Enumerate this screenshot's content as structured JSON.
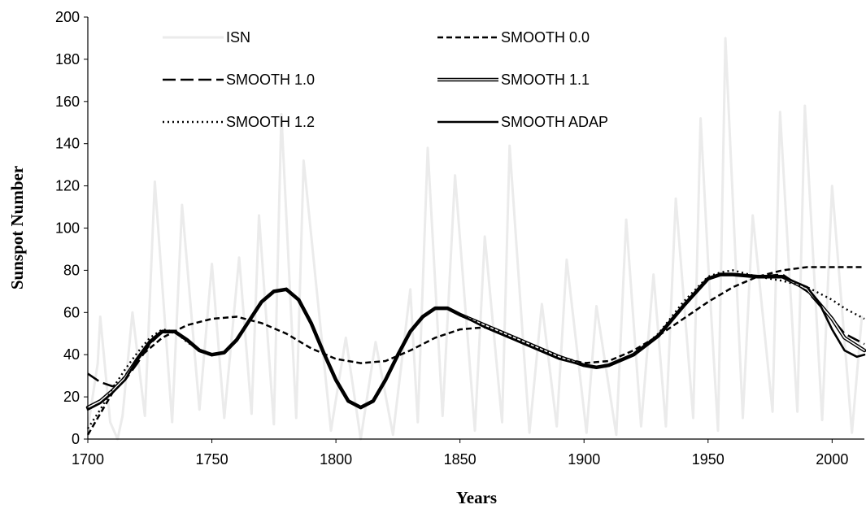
{
  "chart_data": {
    "type": "line",
    "xlabel": "Years",
    "ylabel": "Sunspot Number",
    "xlim": [
      1700,
      2013
    ],
    "ylim": [
      0,
      200
    ],
    "x_ticks": [
      1700,
      1750,
      1800,
      1850,
      1900,
      1950,
      2000
    ],
    "y_ticks": [
      0,
      20,
      40,
      60,
      80,
      100,
      120,
      140,
      160,
      180,
      200
    ],
    "grid": false,
    "legend_position": "top",
    "series": [
      {
        "name": "ISN",
        "color": "#ebebeb",
        "style": "solid-thin",
        "points": [
          [
            1700,
            5
          ],
          [
            1704,
            36
          ],
          [
            1705,
            58
          ],
          [
            1709,
            8
          ],
          [
            1712,
            0
          ],
          [
            1714,
            11
          ],
          [
            1718,
            60
          ],
          [
            1723,
            11
          ],
          [
            1727,
            122
          ],
          [
            1734,
            8
          ],
          [
            1738,
            111
          ],
          [
            1745,
            14
          ],
          [
            1750,
            83
          ],
          [
            1755,
            10
          ],
          [
            1761,
            86
          ],
          [
            1766,
            12
          ],
          [
            1769,
            106
          ],
          [
            1775,
            7
          ],
          [
            1778,
            154
          ],
          [
            1784,
            10
          ],
          [
            1787,
            132
          ],
          [
            1798,
            4
          ],
          [
            1804,
            48
          ],
          [
            1810,
            0
          ],
          [
            1816,
            46
          ],
          [
            1823,
            2
          ],
          [
            1830,
            71
          ],
          [
            1833,
            8
          ],
          [
            1837,
            138
          ],
          [
            1843,
            11
          ],
          [
            1848,
            125
          ],
          [
            1856,
            4
          ],
          [
            1860,
            96
          ],
          [
            1867,
            8
          ],
          [
            1870,
            139
          ],
          [
            1878,
            3
          ],
          [
            1883,
            64
          ],
          [
            1889,
            6
          ],
          [
            1893,
            85
          ],
          [
            1901,
            3
          ],
          [
            1905,
            63
          ],
          [
            1913,
            2
          ],
          [
            1917,
            104
          ],
          [
            1923,
            6
          ],
          [
            1928,
            78
          ],
          [
            1933,
            6
          ],
          [
            1937,
            114
          ],
          [
            1944,
            10
          ],
          [
            1947,
            152
          ],
          [
            1950,
            84
          ],
          [
            1954,
            4
          ],
          [
            1957,
            190
          ],
          [
            1964,
            10
          ],
          [
            1968,
            106
          ],
          [
            1976,
            13
          ],
          [
            1979,
            155
          ],
          [
            1986,
            13
          ],
          [
            1989,
            158
          ],
          [
            1996,
            9
          ],
          [
            2000,
            120
          ],
          [
            2008,
            3
          ],
          [
            2012,
            58
          ]
        ]
      },
      {
        "name": "SMOOTH 0.0",
        "color": "#000000",
        "style": "dashed",
        "points": [
          [
            1700,
            2
          ],
          [
            1710,
            22
          ],
          [
            1720,
            38
          ],
          [
            1730,
            48
          ],
          [
            1740,
            54
          ],
          [
            1750,
            57
          ],
          [
            1760,
            58
          ],
          [
            1770,
            55
          ],
          [
            1780,
            50
          ],
          [
            1790,
            43
          ],
          [
            1800,
            38
          ],
          [
            1810,
            36
          ],
          [
            1820,
            37
          ],
          [
            1830,
            42
          ],
          [
            1840,
            48
          ],
          [
            1850,
            52
          ],
          [
            1860,
            53
          ],
          [
            1870,
            49
          ],
          [
            1880,
            44
          ],
          [
            1890,
            39
          ],
          [
            1900,
            36
          ],
          [
            1910,
            37
          ],
          [
            1920,
            42
          ],
          [
            1930,
            49
          ],
          [
            1940,
            57
          ],
          [
            1950,
            65
          ],
          [
            1960,
            72
          ],
          [
            1970,
            77
          ],
          [
            1980,
            80
          ],
          [
            1990,
            81.5
          ],
          [
            2000,
            81.5
          ],
          [
            2010,
            81.5
          ],
          [
            2013,
            81.5
          ]
        ]
      },
      {
        "name": "SMOOTH 1.0",
        "color": "#000000",
        "style": "long-dash",
        "points": [
          [
            1700,
            31
          ],
          [
            1705,
            27
          ],
          [
            1710,
            25
          ],
          [
            1715,
            28
          ],
          [
            1720,
            36
          ],
          [
            1725,
            45
          ],
          [
            1730,
            51
          ],
          [
            1735,
            51
          ],
          [
            1740,
            47
          ],
          [
            1745,
            42
          ],
          [
            1750,
            40
          ],
          [
            1755,
            41
          ],
          [
            1760,
            47
          ],
          [
            1765,
            56
          ],
          [
            1770,
            65
          ],
          [
            1775,
            70
          ],
          [
            1780,
            71
          ],
          [
            1785,
            66
          ],
          [
            1790,
            55
          ],
          [
            1795,
            41
          ],
          [
            1800,
            28
          ],
          [
            1805,
            18
          ],
          [
            1810,
            15
          ],
          [
            1815,
            18
          ],
          [
            1820,
            28
          ],
          [
            1825,
            40
          ],
          [
            1830,
            51
          ],
          [
            1835,
            58
          ],
          [
            1840,
            62
          ],
          [
            1845,
            62
          ],
          [
            1850,
            59
          ],
          [
            1860,
            54
          ],
          [
            1870,
            49
          ],
          [
            1880,
            44
          ],
          [
            1890,
            39
          ],
          [
            1900,
            35
          ],
          [
            1905,
            34
          ],
          [
            1910,
            35
          ],
          [
            1920,
            40
          ],
          [
            1930,
            49
          ],
          [
            1940,
            63
          ],
          [
            1950,
            76
          ],
          [
            1955,
            78
          ],
          [
            1960,
            78
          ],
          [
            1970,
            77
          ],
          [
            1980,
            78
          ],
          [
            1990,
            70
          ],
          [
            2000,
            57
          ],
          [
            2005,
            50
          ],
          [
            2013,
            45
          ]
        ]
      },
      {
        "name": "SMOOTH 1.1",
        "color": "#000000",
        "style": "dash-dot-double",
        "points": [
          [
            1700,
            15
          ],
          [
            1705,
            18
          ],
          [
            1710,
            23
          ],
          [
            1715,
            29
          ],
          [
            1720,
            38
          ],
          [
            1725,
            46
          ],
          [
            1730,
            51
          ],
          [
            1735,
            51
          ],
          [
            1740,
            47
          ],
          [
            1745,
            42
          ],
          [
            1750,
            40
          ],
          [
            1755,
            41
          ],
          [
            1760,
            47
          ],
          [
            1765,
            56
          ],
          [
            1770,
            65
          ],
          [
            1775,
            70
          ],
          [
            1780,
            71
          ],
          [
            1785,
            66
          ],
          [
            1790,
            55
          ],
          [
            1795,
            41
          ],
          [
            1800,
            28
          ],
          [
            1805,
            18
          ],
          [
            1810,
            15
          ],
          [
            1815,
            18
          ],
          [
            1820,
            28
          ],
          [
            1825,
            40
          ],
          [
            1830,
            51
          ],
          [
            1835,
            58
          ],
          [
            1840,
            62
          ],
          [
            1845,
            62
          ],
          [
            1850,
            59
          ],
          [
            1860,
            54
          ],
          [
            1870,
            49
          ],
          [
            1880,
            44
          ],
          [
            1890,
            39
          ],
          [
            1900,
            35
          ],
          [
            1905,
            34
          ],
          [
            1910,
            35
          ],
          [
            1920,
            40
          ],
          [
            1930,
            49
          ],
          [
            1940,
            63
          ],
          [
            1950,
            76
          ],
          [
            1955,
            78
          ],
          [
            1960,
            78
          ],
          [
            1970,
            77
          ],
          [
            1980,
            77
          ],
          [
            1990,
            71
          ],
          [
            2000,
            57
          ],
          [
            2005,
            48
          ],
          [
            2013,
            42
          ]
        ]
      },
      {
        "name": "SMOOTH 1.2",
        "color": "#000000",
        "style": "dotted",
        "points": [
          [
            1700,
            5
          ],
          [
            1705,
            14
          ],
          [
            1710,
            24
          ],
          [
            1715,
            33
          ],
          [
            1720,
            41
          ],
          [
            1725,
            48
          ],
          [
            1730,
            52
          ],
          [
            1735,
            51
          ],
          [
            1740,
            46
          ],
          [
            1745,
            42
          ],
          [
            1750,
            40
          ],
          [
            1755,
            41
          ],
          [
            1760,
            47
          ],
          [
            1765,
            56
          ],
          [
            1770,
            65
          ],
          [
            1775,
            70
          ],
          [
            1780,
            71
          ],
          [
            1785,
            66
          ],
          [
            1790,
            55
          ],
          [
            1795,
            41
          ],
          [
            1800,
            28
          ],
          [
            1805,
            18
          ],
          [
            1810,
            15
          ],
          [
            1815,
            18
          ],
          [
            1820,
            28
          ],
          [
            1825,
            40
          ],
          [
            1830,
            51
          ],
          [
            1835,
            58
          ],
          [
            1840,
            62
          ],
          [
            1845,
            62
          ],
          [
            1850,
            59
          ],
          [
            1860,
            54
          ],
          [
            1870,
            49
          ],
          [
            1880,
            44
          ],
          [
            1890,
            39
          ],
          [
            1900,
            35
          ],
          [
            1905,
            34
          ],
          [
            1910,
            35
          ],
          [
            1920,
            40
          ],
          [
            1930,
            50
          ],
          [
            1940,
            65
          ],
          [
            1950,
            77
          ],
          [
            1955,
            79
          ],
          [
            1960,
            80
          ],
          [
            1970,
            77
          ],
          [
            1980,
            75
          ],
          [
            1990,
            72
          ],
          [
            2000,
            66
          ],
          [
            2005,
            62
          ],
          [
            2013,
            57
          ]
        ]
      },
      {
        "name": "SMOOTH ADAP",
        "color": "#000000",
        "style": "solid",
        "points": [
          [
            1700,
            14
          ],
          [
            1705,
            17
          ],
          [
            1710,
            22
          ],
          [
            1715,
            28
          ],
          [
            1720,
            38
          ],
          [
            1725,
            46
          ],
          [
            1730,
            51
          ],
          [
            1735,
            51
          ],
          [
            1740,
            47
          ],
          [
            1745,
            42
          ],
          [
            1750,
            40
          ],
          [
            1755,
            41
          ],
          [
            1760,
            47
          ],
          [
            1765,
            56
          ],
          [
            1770,
            65
          ],
          [
            1775,
            70
          ],
          [
            1780,
            71
          ],
          [
            1785,
            66
          ],
          [
            1790,
            55
          ],
          [
            1795,
            41
          ],
          [
            1800,
            28
          ],
          [
            1805,
            18
          ],
          [
            1810,
            15
          ],
          [
            1815,
            18
          ],
          [
            1820,
            28
          ],
          [
            1825,
            40
          ],
          [
            1830,
            51
          ],
          [
            1835,
            58
          ],
          [
            1840,
            62
          ],
          [
            1845,
            62
          ],
          [
            1850,
            59
          ],
          [
            1860,
            53
          ],
          [
            1870,
            48
          ],
          [
            1880,
            43
          ],
          [
            1890,
            38
          ],
          [
            1900,
            35
          ],
          [
            1905,
            34
          ],
          [
            1910,
            35
          ],
          [
            1920,
            40
          ],
          [
            1930,
            49
          ],
          [
            1940,
            63
          ],
          [
            1950,
            76
          ],
          [
            1955,
            78
          ],
          [
            1960,
            78
          ],
          [
            1970,
            77
          ],
          [
            1980,
            77
          ],
          [
            1990,
            72
          ],
          [
            1995,
            64
          ],
          [
            2000,
            52
          ],
          [
            2005,
            42
          ],
          [
            2010,
            39
          ],
          [
            2013,
            40
          ]
        ]
      }
    ]
  }
}
